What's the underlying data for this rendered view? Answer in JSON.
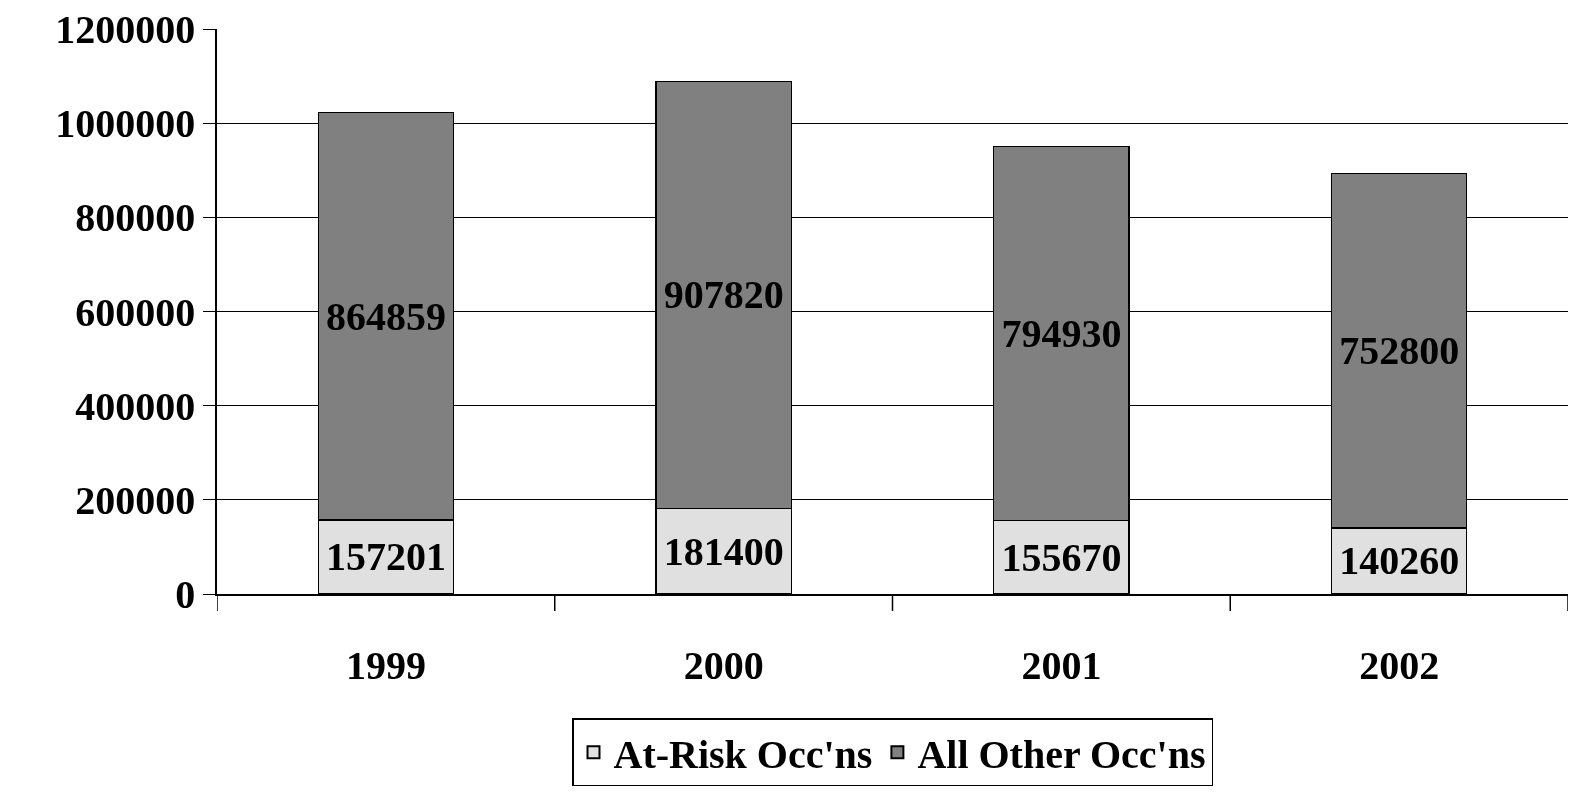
{
  "chart_data": {
    "type": "bar",
    "stacked": true,
    "categories": [
      "1999",
      "2000",
      "2001",
      "2002"
    ],
    "series": [
      {
        "name": "At-Risk Occ'ns",
        "color": "#e0e0e0",
        "values": [
          157201,
          181400,
          155670,
          140260
        ]
      },
      {
        "name": "All Other Occ'ns",
        "color": "#808080",
        "values": [
          864859,
          907820,
          794930,
          752800
        ]
      }
    ],
    "ylim": [
      0,
      1200000
    ],
    "yticks": [
      0,
      200000,
      400000,
      600000,
      800000,
      1000000,
      1200000
    ],
    "grid": "y",
    "legend": "bottom",
    "data_labels": true
  }
}
